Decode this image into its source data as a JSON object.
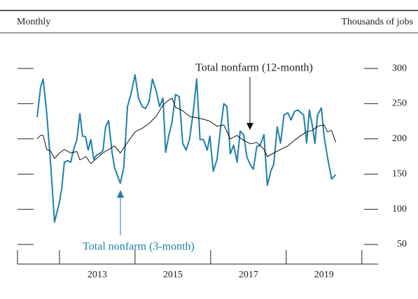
{
  "chart_data": {
    "type": "line",
    "subtitle": "Monthly",
    "y_label": "Thousands of jobs",
    "annotations": [
      {
        "text": "Total nonfarm (12-month)"
      },
      {
        "text": "Total nonfarm (3-month)"
      }
    ],
    "xlim": [
      2010.89,
      2020.43
    ],
    "xticks": [
      2013,
      2015,
      2017,
      2019
    ],
    "x_tick_marks": [
      2012,
      2014,
      2016,
      2018,
      2020
    ],
    "ylim": [
      45,
      305
    ],
    "yticks": [
      50,
      100,
      150,
      200,
      250,
      300
    ],
    "grid": true,
    "series": [
      {
        "name": "Total nonfarm (3-month)",
        "color": "#1f7fab",
        "x": [
          2011.41,
          2011.5,
          2011.57,
          2011.66,
          2011.76,
          2011.87,
          2012.0,
          2012.06,
          2012.13,
          2012.22,
          2012.3,
          2012.37,
          2012.46,
          2012.54,
          2012.61,
          2012.69,
          2012.76,
          2012.83,
          2012.91,
          2012.98,
          2013.06,
          2013.15,
          2013.22,
          2013.3,
          2013.39,
          2013.46,
          2013.61,
          2013.7,
          2013.8,
          2013.89,
          2014.0,
          2014.09,
          2014.19,
          2014.28,
          2014.37,
          2014.46,
          2014.56,
          2014.65,
          2014.74,
          2014.81,
          2014.89,
          2014.98,
          2015.07,
          2015.17,
          2015.26,
          2015.35,
          2015.44,
          2015.54,
          2015.63,
          2015.72,
          2015.81,
          2015.91,
          2015.98,
          2016.07,
          2016.17,
          2016.26,
          2016.35,
          2016.43,
          2016.52,
          2016.61,
          2016.7,
          2016.78,
          2016.87,
          2016.96,
          2017.06,
          2017.13,
          2017.22,
          2017.31,
          2017.41,
          2017.5,
          2017.59,
          2017.67,
          2017.76,
          2017.85,
          2017.94,
          2018.04,
          2018.13,
          2018.22,
          2018.31,
          2018.39,
          2018.46,
          2018.54,
          2018.61,
          2018.69,
          2018.76,
          2018.83,
          2018.93,
          2019.0,
          2019.09,
          2019.2,
          2019.31
        ],
        "values": [
          231,
          273,
          285,
          238,
          169,
          82,
          110,
          130,
          167,
          169,
          167,
          184,
          199,
          236,
          204,
          203,
          184,
          199,
          171,
          177,
          179,
          183,
          217,
          226,
          181,
          159,
          137,
          159,
          246,
          263,
          291,
          258,
          246,
          243,
          253,
          285,
          268,
          246,
          258,
          181,
          204,
          224,
          263,
          260,
          194,
          184,
          199,
          238,
          285,
          199,
          199,
          184,
          204,
          154,
          171,
          214,
          250,
          246,
          179,
          191,
          167,
          211,
          206,
          174,
          162,
          157,
          189,
          191,
          206,
          134,
          154,
          164,
          217,
          194,
          234,
          237,
          227,
          239,
          241,
          237,
          234,
          194,
          241,
          219,
          194,
          234,
          244,
          204,
          174,
          143,
          149
        ]
      },
      {
        "name": "Total nonfarm (12-month)",
        "color": "#111111",
        "x": [
          2011.41,
          2011.5,
          2011.57,
          2011.66,
          2011.76,
          2011.87,
          2012.0,
          2012.13,
          2012.3,
          2012.46,
          2012.54,
          2012.7,
          2012.83,
          2012.98,
          2013.15,
          2013.3,
          2013.46,
          2013.61,
          2013.8,
          2014.0,
          2014.19,
          2014.37,
          2014.56,
          2014.74,
          2014.89,
          2014.98,
          2015.07,
          2015.26,
          2015.44,
          2015.63,
          2015.81,
          2015.98,
          2016.17,
          2016.35,
          2016.52,
          2016.7,
          2016.87,
          2017.06,
          2017.22,
          2017.41,
          2017.5,
          2017.67,
          2017.85,
          2018.04,
          2018.22,
          2018.39,
          2018.54,
          2018.69,
          2018.83,
          2019.0,
          2019.09,
          2019.2,
          2019.31
        ],
        "values": [
          200,
          205,
          205,
          185,
          183,
          172,
          180,
          185,
          180,
          182,
          170,
          175,
          165,
          172,
          180,
          185,
          190,
          180,
          195,
          210,
          215,
          222,
          232,
          248,
          255,
          258,
          245,
          240,
          232,
          230,
          228,
          225,
          218,
          220,
          200,
          205,
          198,
          193,
          195,
          185,
          175,
          180,
          185,
          190,
          198,
          205,
          210,
          212,
          218,
          220,
          210,
          212,
          195
        ]
      }
    ]
  }
}
